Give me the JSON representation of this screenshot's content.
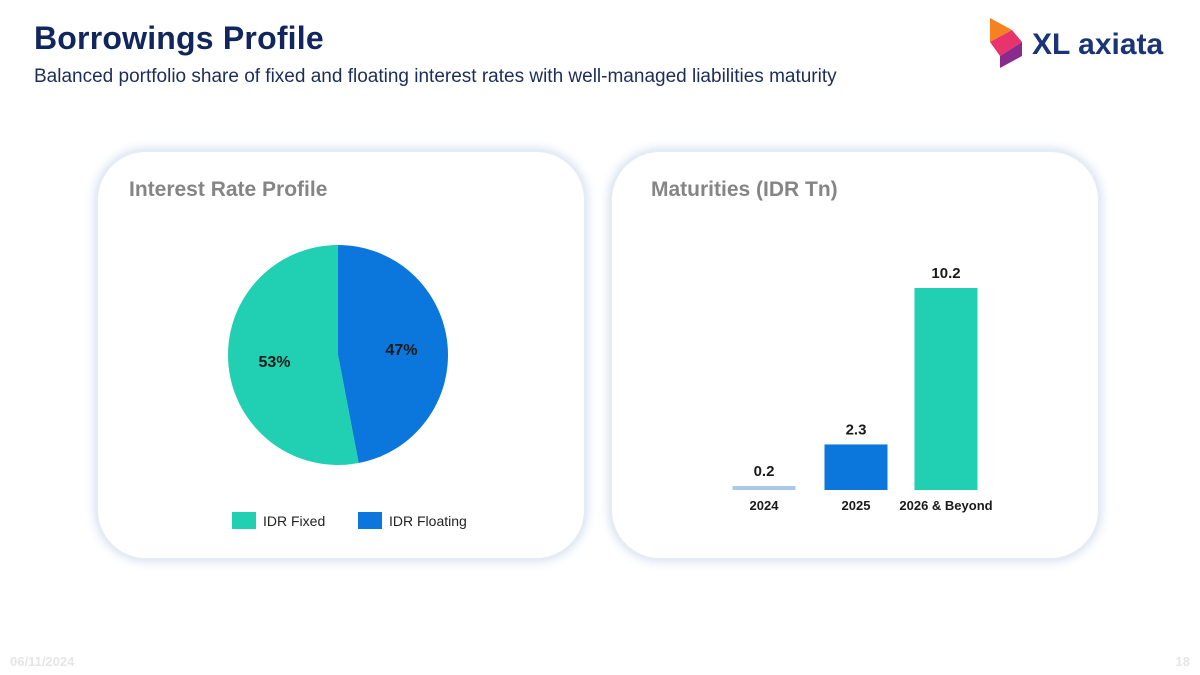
{
  "header": {
    "title": "Borrowings Profile",
    "subtitle": "Balanced portfolio share of fixed and floating interest rates with well-managed liabilities maturity"
  },
  "logo": {
    "text": "XL axiata",
    "colors": [
      "#f58220",
      "#e8336d",
      "#8a2a8c"
    ]
  },
  "footer": {
    "date": "06/11/2024",
    "page": "18"
  },
  "chart_data": [
    {
      "type": "pie",
      "title": "Interest Rate Profile",
      "slices": [
        {
          "name": "IDR Fixed",
          "value": 53,
          "label": "53%",
          "color": "#21d0b2"
        },
        {
          "name": "IDR Floating",
          "value": 47,
          "label": "47%",
          "color": "#0b76db"
        }
      ],
      "legend": "bottom"
    },
    {
      "type": "bar",
      "title": "Maturities (IDR Tn)",
      "categories": [
        "2024",
        "2025",
        "2026 & Beyond"
      ],
      "values": [
        0.2,
        2.3,
        10.2
      ],
      "labels": [
        "0.2",
        "2.3",
        "10.2"
      ],
      "colors": [
        "#a7c8ea",
        "#0b76db",
        "#21d0b2"
      ],
      "ylim": [
        0,
        10.2
      ],
      "grid": false
    }
  ]
}
